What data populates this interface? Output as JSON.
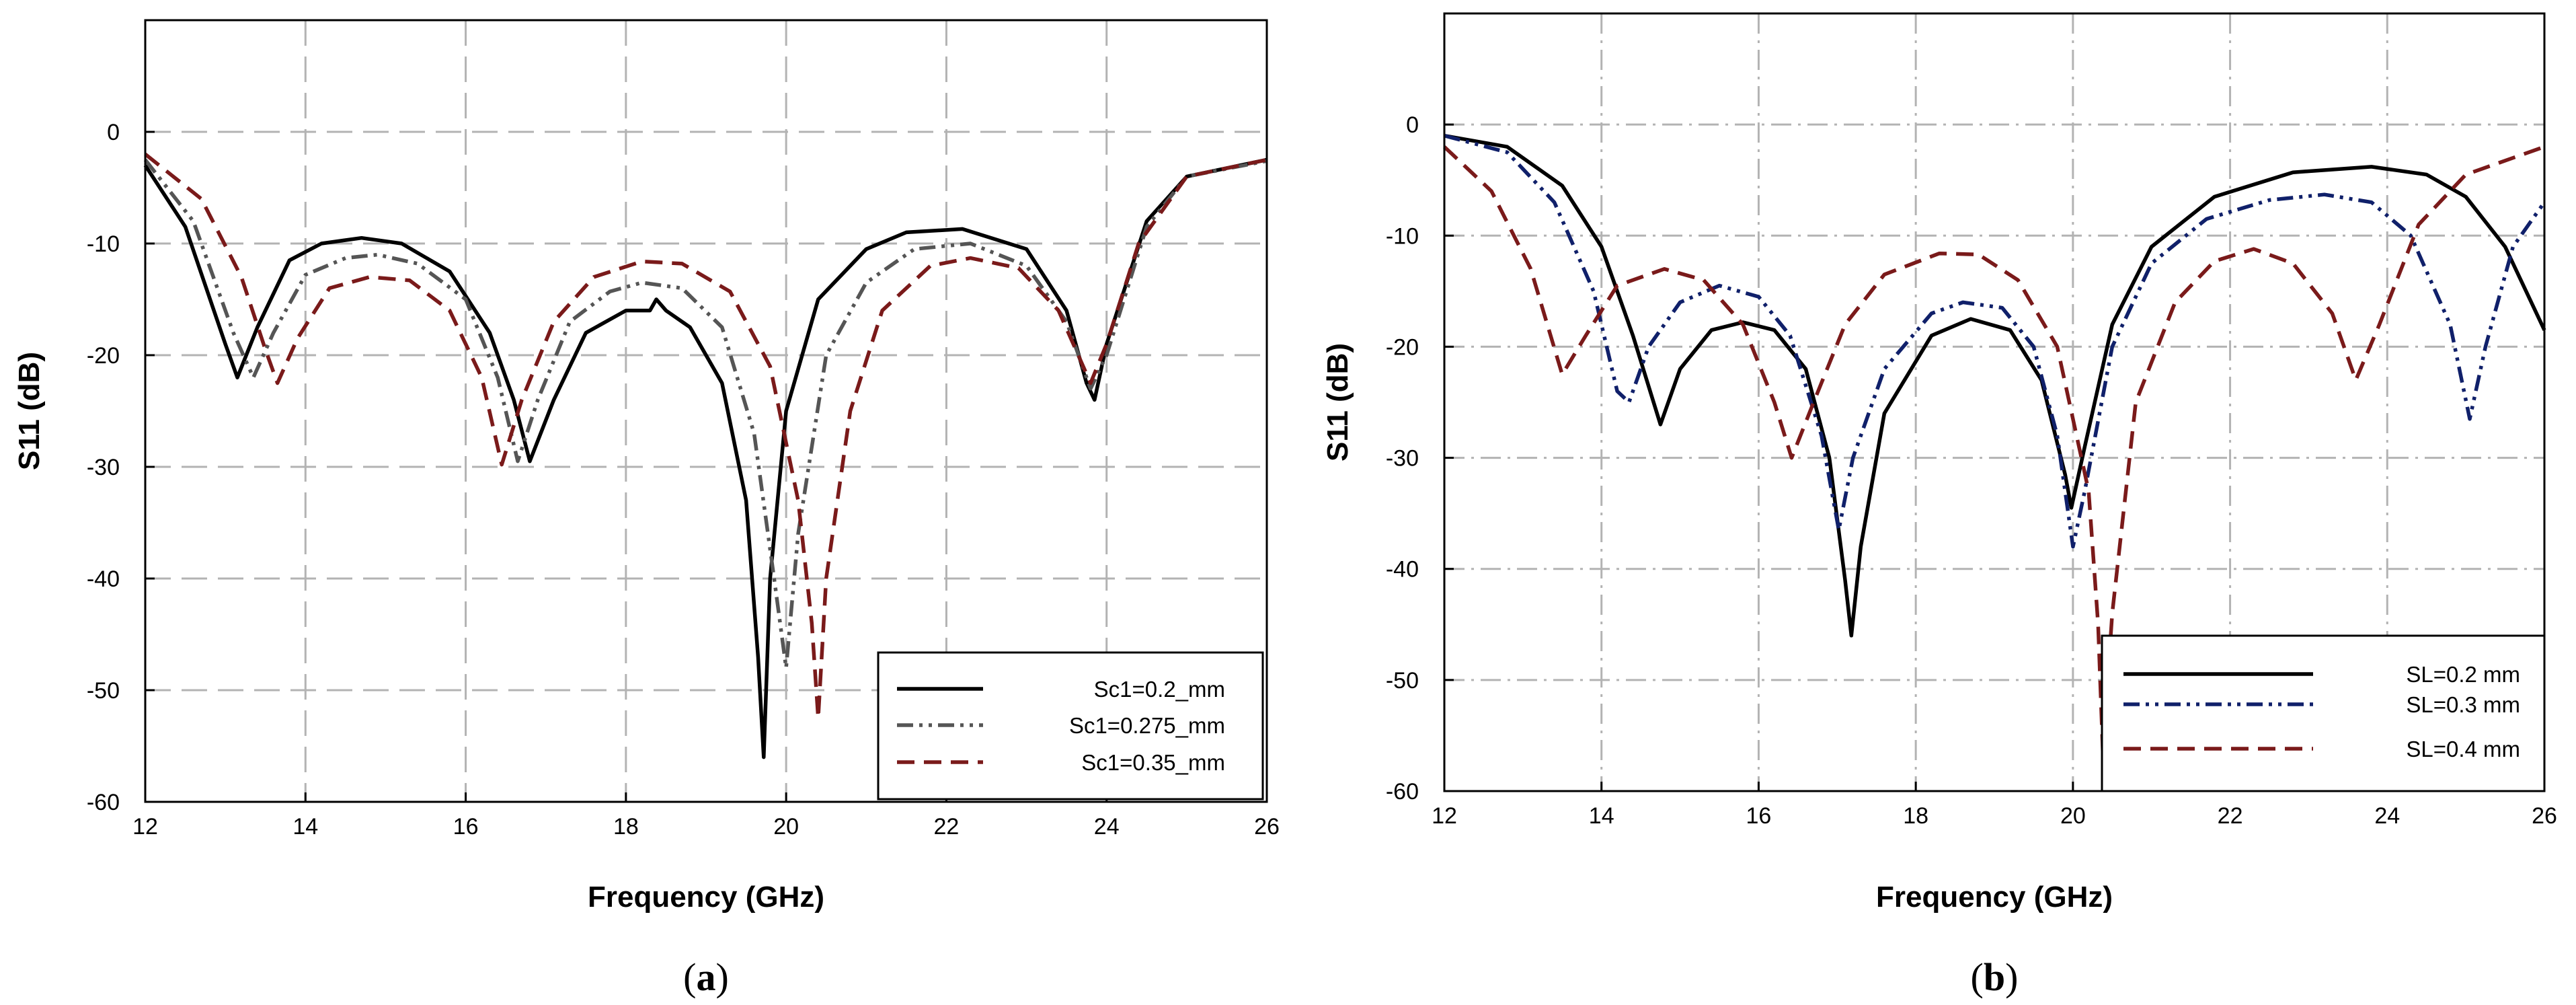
{
  "chart_data": [
    {
      "type": "line",
      "panel": "a",
      "caption_open": "(",
      "caption_letter": "a",
      "caption_close": ")",
      "xlabel": "Frequency (GHz)",
      "ylabel": "S11 (dB)",
      "xlim": [
        12,
        26
      ],
      "ylim": [
        -60,
        10
      ],
      "xticks": [
        12,
        14,
        16,
        18,
        20,
        22,
        24,
        26
      ],
      "yticks": [
        0,
        -10,
        -20,
        -30,
        -40,
        -50,
        -60
      ],
      "grid": "dashed",
      "legend_position": "bottom-right",
      "series": [
        {
          "name": "Sc1=0.2_mm",
          "color": "#000000",
          "style": "solid",
          "points": [
            [
              12,
              -3
            ],
            [
              12.5,
              -8.5
            ],
            [
              13,
              -19
            ],
            [
              13.15,
              -22
            ],
            [
              13.4,
              -17.5
            ],
            [
              13.8,
              -11.5
            ],
            [
              14.2,
              -10
            ],
            [
              14.7,
              -9.5
            ],
            [
              15.2,
              -10
            ],
            [
              15.8,
              -12.5
            ],
            [
              16.3,
              -18
            ],
            [
              16.6,
              -24
            ],
            [
              16.8,
              -29.5
            ],
            [
              17.1,
              -24
            ],
            [
              17.5,
              -18
            ],
            [
              18,
              -16
            ],
            [
              18.3,
              -16
            ],
            [
              18.38,
              -15
            ],
            [
              18.5,
              -16
            ],
            [
              18.8,
              -17.5
            ],
            [
              19.2,
              -22.5
            ],
            [
              19.5,
              -33
            ],
            [
              19.65,
              -47
            ],
            [
              19.72,
              -56
            ],
            [
              19.8,
              -40
            ],
            [
              20,
              -25
            ],
            [
              20.4,
              -15
            ],
            [
              21,
              -10.5
            ],
            [
              21.5,
              -9
            ],
            [
              22.2,
              -8.7
            ],
            [
              23,
              -10.5
            ],
            [
              23.5,
              -16
            ],
            [
              23.75,
              -22.5
            ],
            [
              23.85,
              -24
            ],
            [
              24,
              -19
            ],
            [
              24.5,
              -8
            ],
            [
              25,
              -4
            ],
            [
              26,
              -2.5
            ]
          ]
        },
        {
          "name": "Sc1=0.275_mm",
          "color": "#555555",
          "style": "dashdotdot",
          "points": [
            [
              12,
              -2.5
            ],
            [
              12.6,
              -8
            ],
            [
              13.1,
              -18
            ],
            [
              13.35,
              -22
            ],
            [
              13.6,
              -18
            ],
            [
              14,
              -12.8
            ],
            [
              14.5,
              -11.3
            ],
            [
              14.9,
              -11
            ],
            [
              15.4,
              -11.8
            ],
            [
              16,
              -15
            ],
            [
              16.4,
              -22
            ],
            [
              16.65,
              -29.5
            ],
            [
              16.9,
              -24
            ],
            [
              17.3,
              -17
            ],
            [
              17.8,
              -14.3
            ],
            [
              18.2,
              -13.5
            ],
            [
              18.7,
              -14
            ],
            [
              19.2,
              -17.5
            ],
            [
              19.6,
              -27
            ],
            [
              19.85,
              -40
            ],
            [
              20,
              -48
            ],
            [
              20.15,
              -36
            ],
            [
              20.5,
              -20
            ],
            [
              21,
              -13.5
            ],
            [
              21.6,
              -10.5
            ],
            [
              22.3,
              -10
            ],
            [
              23,
              -12
            ],
            [
              23.5,
              -17
            ],
            [
              23.8,
              -23
            ],
            [
              24,
              -20
            ],
            [
              24.5,
              -8.5
            ],
            [
              25,
              -4
            ],
            [
              26,
              -2.6
            ]
          ]
        },
        {
          "name": "Sc1=0.35_mm",
          "color": "#7a1a1a",
          "style": "dashed",
          "points": [
            [
              12,
              -2
            ],
            [
              12.7,
              -6
            ],
            [
              13.2,
              -13
            ],
            [
              13.5,
              -19.5
            ],
            [
              13.65,
              -22.5
            ],
            [
              13.9,
              -18.5
            ],
            [
              14.3,
              -14
            ],
            [
              14.8,
              -13
            ],
            [
              15.3,
              -13.3
            ],
            [
              15.8,
              -16
            ],
            [
              16.2,
              -22
            ],
            [
              16.45,
              -29.8
            ],
            [
              16.7,
              -24
            ],
            [
              17.1,
              -17
            ],
            [
              17.6,
              -13
            ],
            [
              18.2,
              -11.6
            ],
            [
              18.7,
              -11.8
            ],
            [
              19.3,
              -14.3
            ],
            [
              19.8,
              -21
            ],
            [
              20.15,
              -33
            ],
            [
              20.32,
              -44
            ],
            [
              20.4,
              -52.5
            ],
            [
              20.5,
              -40
            ],
            [
              20.8,
              -25
            ],
            [
              21.2,
              -16
            ],
            [
              21.8,
              -12
            ],
            [
              22.3,
              -11.3
            ],
            [
              22.9,
              -12.2
            ],
            [
              23.4,
              -16
            ],
            [
              23.8,
              -22.5
            ],
            [
              24,
              -19
            ],
            [
              24.4,
              -10
            ],
            [
              25,
              -4
            ],
            [
              26,
              -2.5
            ]
          ]
        }
      ]
    },
    {
      "type": "line",
      "panel": "b",
      "caption_open": "(",
      "caption_letter": "b",
      "caption_close": ")",
      "xlabel": "Frequency (GHz)",
      "ylabel": "S11 (dB)",
      "xlim": [
        12,
        26
      ],
      "ylim": [
        -60,
        10
      ],
      "xticks": [
        12,
        14,
        16,
        18,
        20,
        22,
        24,
        26
      ],
      "yticks": [
        0,
        -10,
        -20,
        -30,
        -40,
        -50,
        -60
      ],
      "grid": "dashdot",
      "legend_position": "bottom-right",
      "series": [
        {
          "name": "SL=0.2 mm",
          "color": "#000000",
          "style": "solid",
          "points": [
            [
              12,
              -1
            ],
            [
              12.8,
              -2
            ],
            [
              13.5,
              -5.5
            ],
            [
              14,
              -11
            ],
            [
              14.4,
              -19
            ],
            [
              14.75,
              -27
            ],
            [
              15,
              -22
            ],
            [
              15.4,
              -18.5
            ],
            [
              15.8,
              -17.8
            ],
            [
              16.2,
              -18.5
            ],
            [
              16.6,
              -22
            ],
            [
              16.9,
              -30
            ],
            [
              17.1,
              -41
            ],
            [
              17.18,
              -46
            ],
            [
              17.3,
              -38
            ],
            [
              17.6,
              -26
            ],
            [
              18.2,
              -19
            ],
            [
              18.7,
              -17.5
            ],
            [
              19.2,
              -18.5
            ],
            [
              19.6,
              -23
            ],
            [
              19.9,
              -31.5
            ],
            [
              19.98,
              -34.5
            ],
            [
              20.15,
              -29
            ],
            [
              20.5,
              -18
            ],
            [
              21,
              -11
            ],
            [
              21.8,
              -6.5
            ],
            [
              22.8,
              -4.3
            ],
            [
              23.8,
              -3.8
            ],
            [
              24.5,
              -4.5
            ],
            [
              25,
              -6.5
            ],
            [
              25.5,
              -11
            ],
            [
              26,
              -18.5
            ]
          ]
        },
        {
          "name": "SL=0.3 mm",
          "color": "#10206a",
          "style": "dashdotdot",
          "points": [
            [
              12,
              -1
            ],
            [
              12.8,
              -2.5
            ],
            [
              13.4,
              -7
            ],
            [
              13.9,
              -15
            ],
            [
              14.2,
              -24
            ],
            [
              14.35,
              -25
            ],
            [
              14.6,
              -20
            ],
            [
              15,
              -16
            ],
            [
              15.5,
              -14.5
            ],
            [
              16,
              -15.5
            ],
            [
              16.4,
              -19
            ],
            [
              16.8,
              -28
            ],
            [
              17.02,
              -36.5
            ],
            [
              17.2,
              -30
            ],
            [
              17.6,
              -22
            ],
            [
              18.2,
              -17
            ],
            [
              18.6,
              -16
            ],
            [
              19.1,
              -16.5
            ],
            [
              19.5,
              -20
            ],
            [
              19.8,
              -28
            ],
            [
              20,
              -38
            ],
            [
              20.15,
              -33
            ],
            [
              20.5,
              -20
            ],
            [
              21,
              -12.5
            ],
            [
              21.7,
              -8.5
            ],
            [
              22.5,
              -6.8
            ],
            [
              23.2,
              -6.3
            ],
            [
              23.8,
              -7
            ],
            [
              24.3,
              -10
            ],
            [
              24.8,
              -18
            ],
            [
              25.05,
              -26.5
            ],
            [
              25.25,
              -20
            ],
            [
              25.6,
              -11
            ],
            [
              26,
              -7
            ]
          ]
        },
        {
          "name": "SL=0.4 mm",
          "color": "#7a1a1a",
          "style": "dashed",
          "points": [
            [
              12,
              -2
            ],
            [
              12.6,
              -6
            ],
            [
              13.1,
              -13
            ],
            [
              13.5,
              -22.5
            ],
            [
              13.8,
              -19
            ],
            [
              14.2,
              -14.5
            ],
            [
              14.8,
              -13
            ],
            [
              15.3,
              -14
            ],
            [
              15.8,
              -18
            ],
            [
              16.2,
              -25
            ],
            [
              16.42,
              -30
            ],
            [
              16.7,
              -25
            ],
            [
              17.1,
              -18
            ],
            [
              17.6,
              -13.5
            ],
            [
              18.3,
              -11.6
            ],
            [
              18.8,
              -11.7
            ],
            [
              19.3,
              -14
            ],
            [
              19.8,
              -20
            ],
            [
              20.2,
              -33
            ],
            [
              20.32,
              -45
            ],
            [
              20.38,
              -56.5
            ],
            [
              20.5,
              -44
            ],
            [
              20.8,
              -25
            ],
            [
              21.3,
              -16
            ],
            [
              21.8,
              -12.3
            ],
            [
              22.3,
              -11.2
            ],
            [
              22.8,
              -12.5
            ],
            [
              23.3,
              -17
            ],
            [
              23.6,
              -23
            ],
            [
              23.9,
              -18
            ],
            [
              24.4,
              -9
            ],
            [
              25,
              -4.5
            ],
            [
              26,
              -2
            ]
          ]
        }
      ]
    }
  ]
}
